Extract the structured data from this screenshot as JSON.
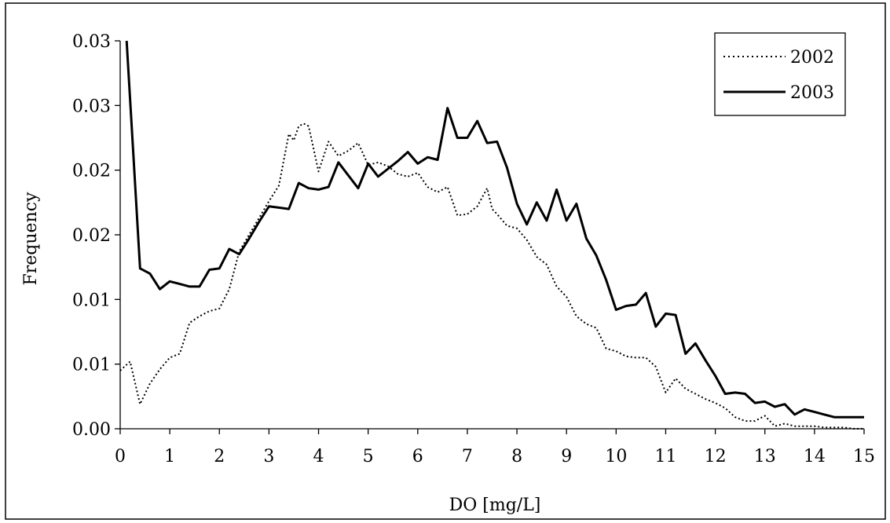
{
  "chart_data": {
    "type": "line",
    "title": "",
    "xlabel": "DO [mg/L]",
    "ylabel": "Frequency",
    "xlim": [
      0,
      15
    ],
    "ylim": [
      0,
      0.03
    ],
    "x_ticks": [
      0,
      1,
      2,
      3,
      4,
      5,
      6,
      7,
      8,
      9,
      10,
      11,
      12,
      13,
      14,
      15
    ],
    "y_tick_values": [
      0,
      0.005,
      0.01,
      0.015,
      0.02,
      0.025,
      0.03
    ],
    "y_tick_labels": [
      "0.00",
      "0.01",
      "0.01",
      "0.02",
      "0.02",
      "0.03",
      "0.03"
    ],
    "grid": false,
    "legend_position": "top-right",
    "series": [
      {
        "name": "2002",
        "style": "dotted",
        "color": "#000000",
        "x": [
          0.0,
          0.2,
          0.4,
          0.6,
          0.8,
          1.0,
          1.2,
          1.4,
          1.6,
          1.8,
          2.0,
          2.2,
          2.4,
          2.6,
          2.8,
          3.0,
          3.2,
          3.4,
          3.5,
          3.6,
          3.7,
          3.8,
          4.0,
          4.2,
          4.4,
          4.6,
          4.8,
          5.0,
          5.2,
          5.4,
          5.6,
          5.8,
          6.0,
          6.2,
          6.4,
          6.6,
          6.8,
          7.0,
          7.2,
          7.4,
          7.5,
          7.6,
          7.8,
          8.0,
          8.2,
          8.4,
          8.6,
          8.8,
          9.0,
          9.2,
          9.4,
          9.6,
          9.8,
          10.0,
          10.2,
          10.4,
          10.6,
          10.8,
          11.0,
          11.2,
          11.4,
          11.6,
          11.8,
          12.0,
          12.2,
          12.4,
          12.6,
          12.8,
          13.0,
          13.2,
          13.4,
          13.6,
          13.8,
          14.0,
          14.2,
          14.4,
          14.6,
          14.8,
          15.0
        ],
        "y": [
          0.0045,
          0.0052,
          0.0019,
          0.0035,
          0.0046,
          0.0055,
          0.0058,
          0.0082,
          0.0087,
          0.0091,
          0.0093,
          0.0108,
          0.0137,
          0.015,
          0.0163,
          0.0176,
          0.0188,
          0.0228,
          0.0223,
          0.0234,
          0.0236,
          0.0234,
          0.0199,
          0.0222,
          0.0211,
          0.0215,
          0.0221,
          0.0204,
          0.0206,
          0.0203,
          0.0197,
          0.0195,
          0.0198,
          0.0187,
          0.0183,
          0.0187,
          0.0165,
          0.0166,
          0.0172,
          0.0186,
          0.017,
          0.0166,
          0.0157,
          0.0155,
          0.0146,
          0.0133,
          0.0127,
          0.011,
          0.0102,
          0.0087,
          0.0081,
          0.0078,
          0.0062,
          0.006,
          0.0056,
          0.0055,
          0.0055,
          0.0048,
          0.0028,
          0.0039,
          0.0031,
          0.0027,
          0.0023,
          0.002,
          0.0016,
          0.0009,
          0.0006,
          0.0006,
          0.001,
          0.0002,
          0.0004,
          0.0002,
          0.0002,
          0.0002,
          0.0001,
          0.0001,
          0.0001,
          0.0,
          0.0
        ]
      },
      {
        "name": "2003",
        "style": "solid",
        "color": "#000000",
        "x": [
          0.13,
          0.25,
          0.4,
          0.6,
          0.8,
          1.0,
          1.2,
          1.4,
          1.6,
          1.8,
          2.0,
          2.2,
          2.4,
          2.6,
          2.8,
          3.0,
          3.2,
          3.4,
          3.6,
          3.8,
          4.0,
          4.2,
          4.4,
          4.6,
          4.8,
          5.0,
          5.2,
          5.4,
          5.6,
          5.8,
          6.0,
          6.2,
          6.4,
          6.6,
          6.8,
          7.0,
          7.2,
          7.4,
          7.6,
          7.8,
          8.0,
          8.2,
          8.4,
          8.6,
          8.8,
          9.0,
          9.2,
          9.4,
          9.6,
          9.8,
          10.0,
          10.2,
          10.4,
          10.6,
          10.8,
          11.0,
          11.2,
          11.4,
          11.6,
          11.8,
          12.0,
          12.2,
          12.4,
          12.6,
          12.8,
          13.0,
          13.2,
          13.4,
          13.6,
          13.8,
          14.0,
          14.2,
          14.4,
          14.6,
          14.8,
          15.0
        ],
        "y": [
          0.03,
          0.0222,
          0.0124,
          0.012,
          0.0108,
          0.0114,
          0.0112,
          0.011,
          0.011,
          0.0123,
          0.0124,
          0.0139,
          0.0135,
          0.0147,
          0.016,
          0.0172,
          0.0171,
          0.017,
          0.019,
          0.0186,
          0.0185,
          0.0187,
          0.0206,
          0.0196,
          0.0186,
          0.0205,
          0.0195,
          0.0201,
          0.0207,
          0.0214,
          0.0205,
          0.021,
          0.0208,
          0.0248,
          0.0225,
          0.0225,
          0.0238,
          0.0221,
          0.0222,
          0.0202,
          0.0174,
          0.0158,
          0.0175,
          0.0161,
          0.0185,
          0.0161,
          0.0174,
          0.0147,
          0.0134,
          0.0115,
          0.0092,
          0.0095,
          0.0096,
          0.0105,
          0.0079,
          0.0089,
          0.0088,
          0.0058,
          0.0066,
          0.0053,
          0.0041,
          0.0027,
          0.0028,
          0.0027,
          0.002,
          0.0021,
          0.0017,
          0.0019,
          0.0011,
          0.0015,
          0.0013,
          0.0011,
          0.0009,
          0.0009,
          0.0009,
          0.0009
        ]
      }
    ]
  }
}
